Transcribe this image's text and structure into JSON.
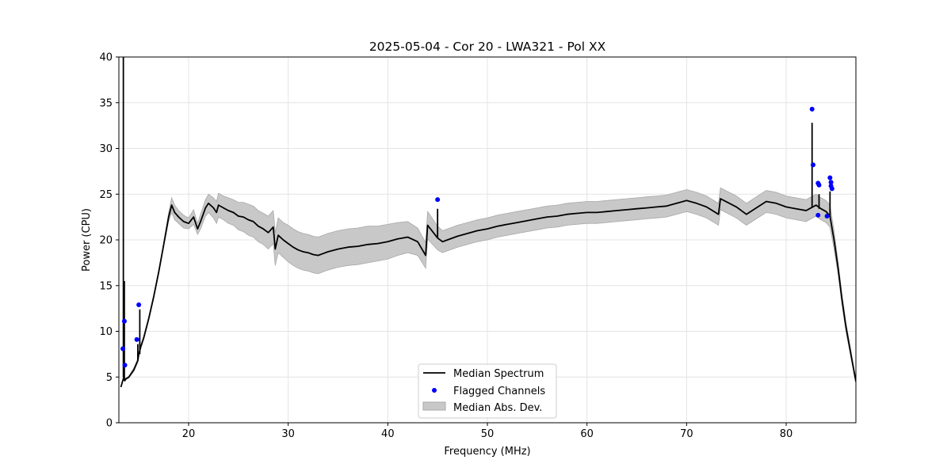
{
  "chart_data": {
    "type": "line",
    "title": "2025-05-04 - Cor 20 - LWA321 - Pol XX",
    "xlabel": "Frequency (MHz)",
    "ylabel": "Power (CPU)",
    "xlim": [
      13.0,
      87.0
    ],
    "ylim": [
      0,
      40
    ],
    "xticks": [
      20,
      30,
      40,
      50,
      60,
      70,
      80
    ],
    "yticks": [
      0,
      5,
      10,
      15,
      20,
      25,
      30,
      35,
      40
    ],
    "grid": true,
    "legend_position": "bottom-center",
    "colors": {
      "median": "#000000",
      "flagged": "#0000ff",
      "mad_fill": "#c8c8c8",
      "mad_edge": "#a8a8a8"
    },
    "series": [
      {
        "name": "Median Spectrum",
        "type": "line",
        "x": [
          13.2,
          13.5,
          13.6,
          13.7,
          14.0,
          14.5,
          14.9,
          15.0,
          15.2,
          15.5,
          16.0,
          16.5,
          17.0,
          17.5,
          18.0,
          18.3,
          18.6,
          19.0,
          19.5,
          20.0,
          20.5,
          20.9,
          21.2,
          21.7,
          22.0,
          22.5,
          22.8,
          23.0,
          23.5,
          24.0,
          24.5,
          25.0,
          25.5,
          26.0,
          26.5,
          27.0,
          27.5,
          28.0,
          28.5,
          28.7,
          29.0,
          29.5,
          30.0,
          30.5,
          31.0,
          31.5,
          32.0,
          32.5,
          33.0,
          33.5,
          34.0,
          35.0,
          36.0,
          37.0,
          38.0,
          39.0,
          40.0,
          41.0,
          42.0,
          43.0,
          43.8,
          44.0,
          45.0,
          45.5,
          46.0,
          47.0,
          48.0,
          49.0,
          50.0,
          51.0,
          52.0,
          53.0,
          54.0,
          55.0,
          56.0,
          57.0,
          58.0,
          59.0,
          60.0,
          61.0,
          62.0,
          63.0,
          64.0,
          65.0,
          66.0,
          67.0,
          68.0,
          69.0,
          70.0,
          71.0,
          72.0,
          73.2,
          73.4,
          75.0,
          76.0,
          77.0,
          78.0,
          79.0,
          80.0,
          81.0,
          82.0,
          82.5,
          83.0,
          83.5,
          84.0,
          84.4,
          84.8,
          85.2,
          85.6,
          86.0,
          86.5,
          87.0
        ],
        "values": [
          3.9,
          5.0,
          4.6,
          4.8,
          5.0,
          5.8,
          6.8,
          7.5,
          8.3,
          9.3,
          11.4,
          13.8,
          16.5,
          19.5,
          22.5,
          23.8,
          23.0,
          22.5,
          22.0,
          21.8,
          22.5,
          21.2,
          22.0,
          23.5,
          24.0,
          23.5,
          23.0,
          23.8,
          23.5,
          23.2,
          23.0,
          22.6,
          22.5,
          22.2,
          22.0,
          21.5,
          21.2,
          20.8,
          21.4,
          19.0,
          20.5,
          20.0,
          19.6,
          19.2,
          18.9,
          18.7,
          18.6,
          18.4,
          18.3,
          18.5,
          18.7,
          19.0,
          19.2,
          19.3,
          19.5,
          19.6,
          19.8,
          20.1,
          20.3,
          19.8,
          18.3,
          21.6,
          20.2,
          19.8,
          20.0,
          20.4,
          20.7,
          21.0,
          21.2,
          21.5,
          21.7,
          21.9,
          22.1,
          22.3,
          22.5,
          22.6,
          22.8,
          22.9,
          23.0,
          23.0,
          23.1,
          23.2,
          23.3,
          23.4,
          23.5,
          23.6,
          23.7,
          24.0,
          24.3,
          24.0,
          23.6,
          22.8,
          24.5,
          23.6,
          22.8,
          23.5,
          24.2,
          24.0,
          23.6,
          23.4,
          23.2,
          23.5,
          23.8,
          23.4,
          23.1,
          22.6,
          20.0,
          17.0,
          13.5,
          10.5,
          7.5,
          4.5
        ],
        "mad_lower": [
          3.9,
          4.8,
          4.6,
          4.7,
          4.9,
          5.6,
          6.6,
          7.3,
          8.1,
          9.1,
          11.2,
          13.6,
          16.3,
          19.3,
          22.0,
          23.0,
          22.2,
          21.8,
          21.3,
          21.2,
          21.7,
          20.6,
          21.2,
          22.6,
          23.0,
          22.4,
          21.8,
          22.5,
          22.2,
          21.8,
          21.6,
          21.1,
          20.9,
          20.5,
          20.3,
          19.8,
          19.5,
          19.0,
          19.6,
          17.2,
          18.6,
          18.1,
          17.6,
          17.2,
          16.9,
          16.7,
          16.6,
          16.4,
          16.3,
          16.5,
          16.7,
          17.0,
          17.2,
          17.3,
          17.5,
          17.7,
          17.9,
          18.3,
          18.6,
          18.3,
          16.9,
          20.1,
          18.9,
          18.6,
          18.8,
          19.2,
          19.5,
          19.8,
          20.0,
          20.3,
          20.5,
          20.7,
          20.9,
          21.1,
          21.3,
          21.4,
          21.6,
          21.7,
          21.8,
          21.8,
          21.9,
          22.0,
          22.1,
          22.2,
          22.3,
          22.4,
          22.5,
          22.8,
          23.1,
          22.8,
          22.4,
          21.6,
          23.3,
          22.4,
          21.6,
          22.3,
          23.0,
          22.8,
          22.4,
          22.2,
          22.0,
          22.3,
          22.6,
          22.2,
          21.9,
          21.4,
          19.0,
          16.3,
          12.9,
          10.0,
          7.1,
          4.3
        ],
        "mad_upper": [
          3.9,
          5.2,
          4.6,
          4.9,
          5.1,
          6.0,
          7.0,
          7.7,
          8.5,
          9.5,
          11.6,
          14.0,
          16.7,
          19.7,
          23.0,
          24.6,
          23.8,
          23.2,
          22.7,
          22.4,
          23.3,
          21.8,
          22.8,
          24.4,
          25.0,
          24.6,
          24.2,
          25.1,
          24.8,
          24.6,
          24.4,
          24.1,
          24.1,
          23.9,
          23.7,
          23.2,
          22.9,
          22.6,
          23.2,
          20.8,
          22.4,
          21.9,
          21.6,
          21.2,
          20.9,
          20.7,
          20.6,
          20.4,
          20.3,
          20.5,
          20.7,
          21.0,
          21.2,
          21.3,
          21.5,
          21.5,
          21.7,
          21.9,
          22.0,
          21.3,
          19.7,
          23.1,
          21.5,
          21.0,
          21.2,
          21.6,
          21.9,
          22.2,
          22.4,
          22.7,
          22.9,
          23.1,
          23.3,
          23.5,
          23.7,
          23.8,
          24.0,
          24.1,
          24.2,
          24.2,
          24.3,
          24.4,
          24.5,
          24.6,
          24.7,
          24.8,
          24.9,
          25.2,
          25.5,
          25.2,
          24.8,
          24.0,
          25.7,
          24.8,
          24.0,
          24.7,
          25.4,
          25.2,
          24.8,
          24.6,
          24.4,
          24.7,
          25.0,
          24.6,
          24.3,
          23.8,
          21.0,
          17.7,
          14.1,
          11.0,
          7.9,
          4.7
        ]
      },
      {
        "name": "Flagged Channels",
        "type": "scatter",
        "points": [
          {
            "x": 13.4,
            "y": 8.1
          },
          {
            "x": 13.55,
            "y": 11.1
          },
          {
            "x": 13.6,
            "y": 6.3
          },
          {
            "x": 14.8,
            "y": 9.1
          },
          {
            "x": 15.0,
            "y": 12.9
          },
          {
            "x": 45.0,
            "y": 24.4
          },
          {
            "x": 82.6,
            "y": 34.3
          },
          {
            "x": 82.7,
            "y": 28.2
          },
          {
            "x": 83.2,
            "y": 26.2
          },
          {
            "x": 83.3,
            "y": 26.0
          },
          {
            "x": 83.2,
            "y": 22.7
          },
          {
            "x": 84.1,
            "y": 22.6
          },
          {
            "x": 84.4,
            "y": 26.8
          },
          {
            "x": 84.5,
            "y": 26.3
          },
          {
            "x": 84.5,
            "y": 25.9
          },
          {
            "x": 84.6,
            "y": 25.6
          }
        ]
      },
      {
        "name": "Median Abs. Dev.",
        "type": "area"
      }
    ],
    "spikes": [
      {
        "x": 13.45,
        "y": 40.0
      },
      {
        "x": 13.55,
        "y": 15.5
      },
      {
        "x": 14.9,
        "y": 8.6
      },
      {
        "x": 15.1,
        "y": 12.4
      },
      {
        "x": 45.0,
        "y": 23.4
      },
      {
        "x": 82.6,
        "y": 32.8
      },
      {
        "x": 83.3,
        "y": 25.0
      },
      {
        "x": 84.4,
        "y": 25.3
      }
    ]
  }
}
